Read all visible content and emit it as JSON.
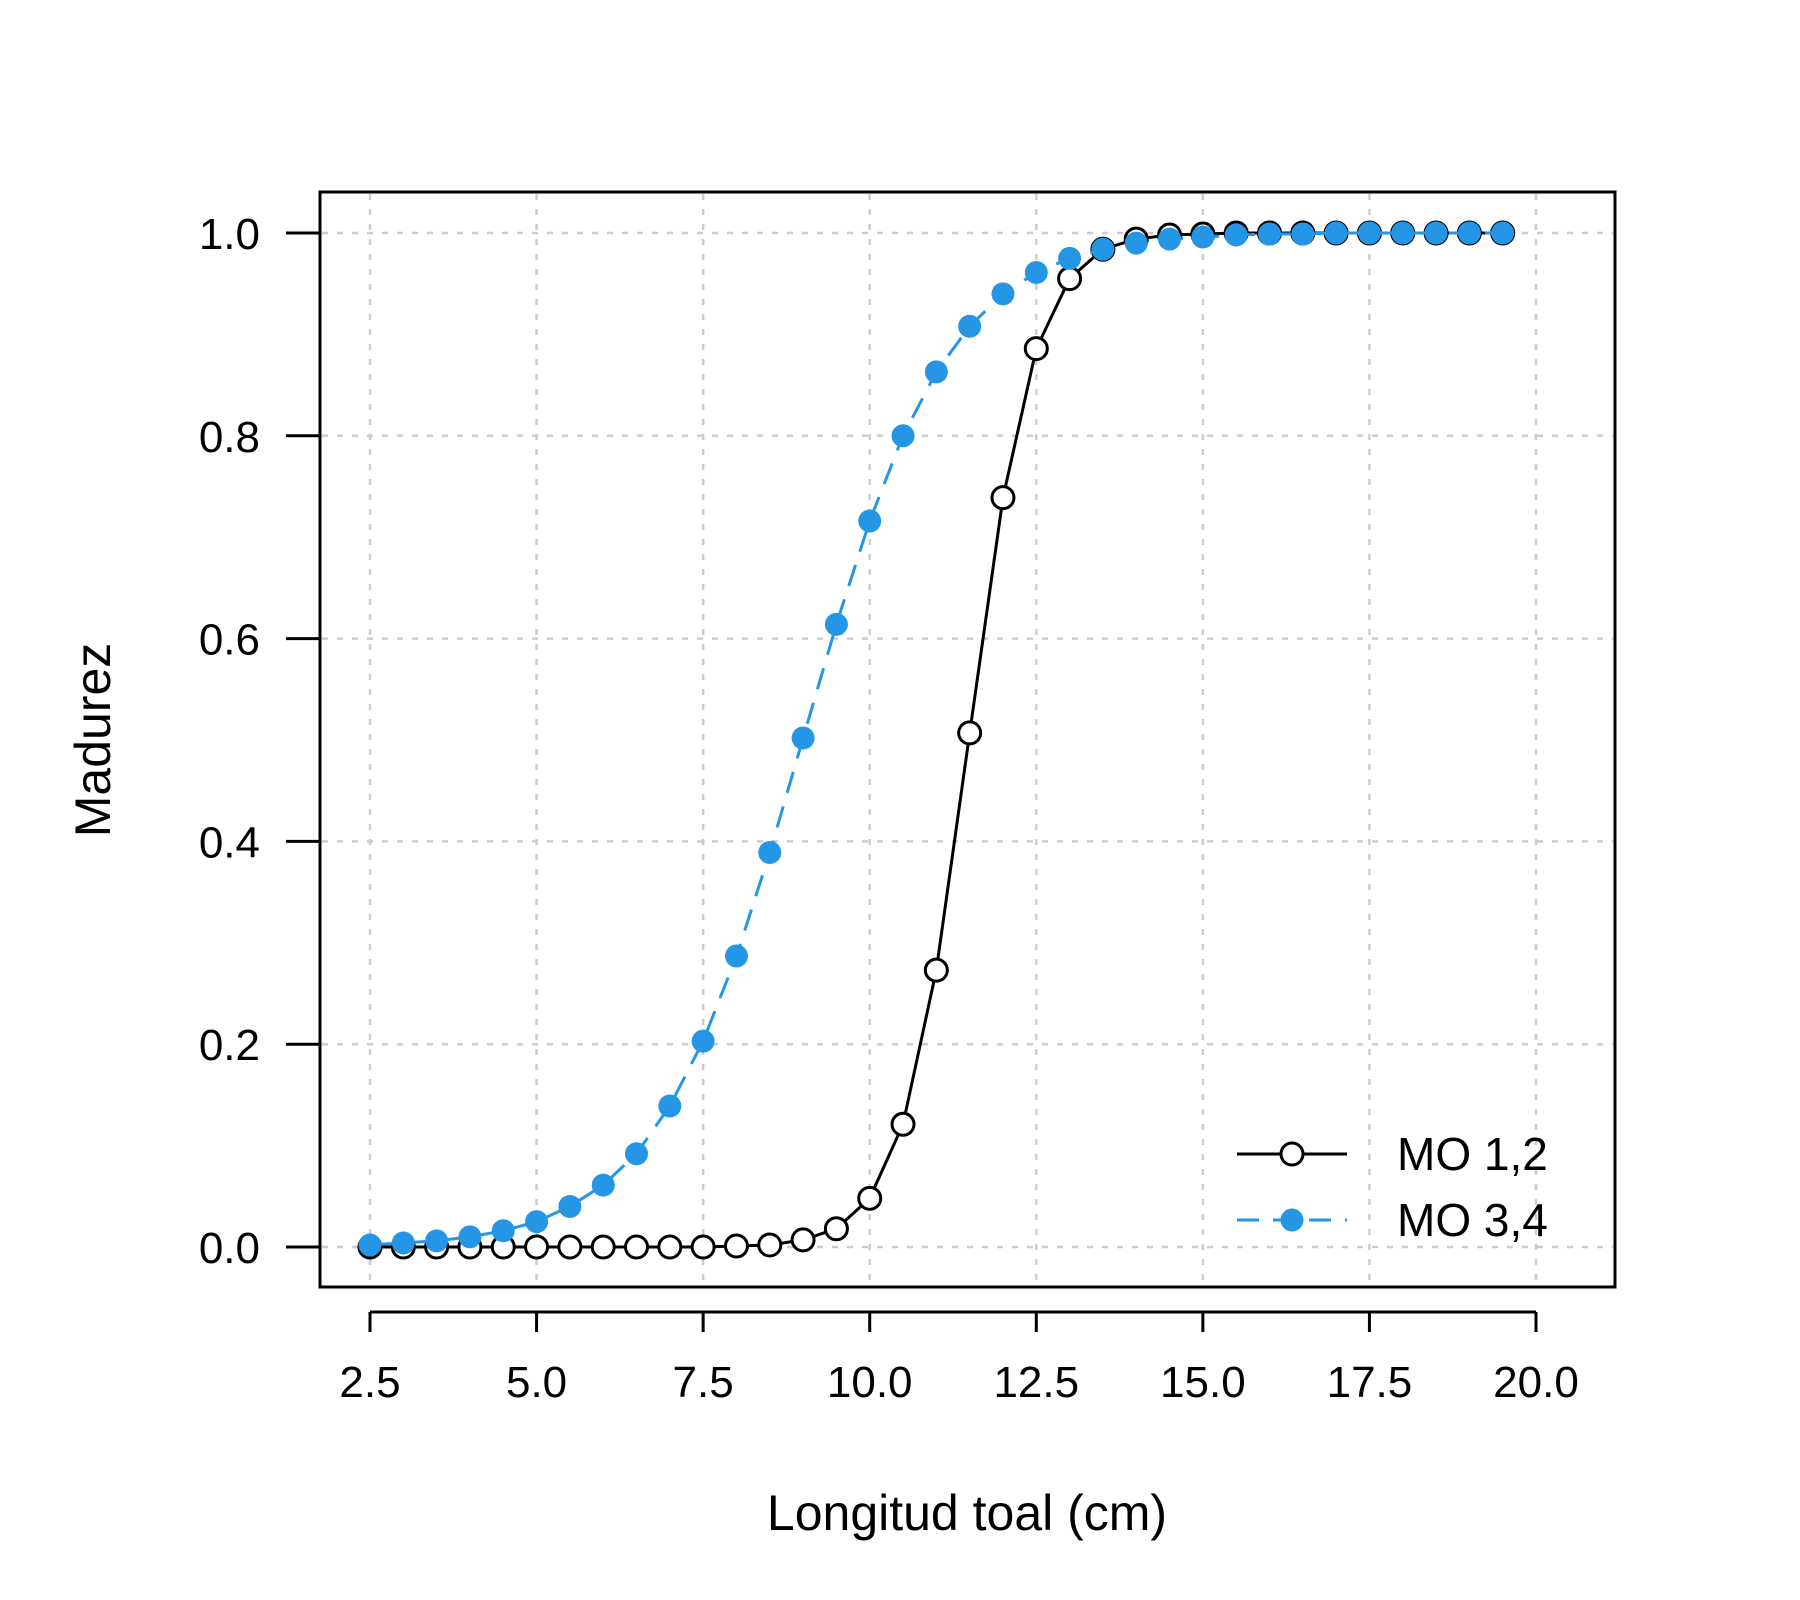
{
  "chart_data": {
    "type": "line",
    "xlabel": "Longitud toal (cm)",
    "ylabel": "Madurez",
    "xlim": [
      2.5,
      20.0
    ],
    "ylim": [
      0.0,
      1.0
    ],
    "x_ticks": [
      "2.5",
      "5.0",
      "7.5",
      "10.0",
      "12.5",
      "15.0",
      "17.5",
      "20.0"
    ],
    "y_ticks": [
      "0.0",
      "0.2",
      "0.4",
      "0.6",
      "0.8",
      "1.0"
    ],
    "grid": true,
    "legend_position": "bottom-right",
    "x": [
      2.5,
      3.0,
      3.5,
      4.0,
      4.5,
      5.0,
      5.5,
      6.0,
      6.5,
      7.0,
      7.5,
      8.0,
      8.5,
      9.0,
      9.5,
      10.0,
      10.5,
      11.0,
      11.5,
      12.0,
      12.5,
      13.0,
      13.5,
      14.0,
      14.5,
      15.0,
      15.5,
      16.0,
      16.5,
      17.0,
      17.5,
      18.0,
      18.5,
      19.0,
      19.5
    ],
    "series": [
      {
        "name": "MO 1,2",
        "color": "#000000",
        "line_style": "solid",
        "marker": "open-circle",
        "values": [
          0.0,
          0.0,
          0.0,
          0.0,
          0.0,
          0.0,
          0.0,
          0.0,
          0.0,
          0.0,
          0.0,
          0.001,
          0.002,
          0.007,
          0.018,
          0.048,
          0.121,
          0.273,
          0.507,
          0.739,
          0.886,
          0.955,
          0.984,
          0.994,
          0.998,
          0.999,
          1.0,
          1.0,
          1.0,
          1.0,
          1.0,
          1.0,
          1.0,
          1.0,
          1.0
        ]
      },
      {
        "name": "MO 3,4",
        "color": "#2596e6",
        "line_style": "dashed",
        "marker": "filled-circle",
        "values": [
          0.002,
          0.004,
          0.006,
          0.01,
          0.016,
          0.025,
          0.04,
          0.061,
          0.092,
          0.139,
          0.203,
          0.287,
          0.389,
          0.502,
          0.614,
          0.716,
          0.8,
          0.863,
          0.908,
          0.94,
          0.961,
          0.975,
          0.984,
          0.99,
          0.994,
          0.996,
          0.998,
          0.999,
          0.999,
          1.0,
          1.0,
          1.0,
          1.0,
          1.0,
          1.0
        ]
      }
    ]
  }
}
